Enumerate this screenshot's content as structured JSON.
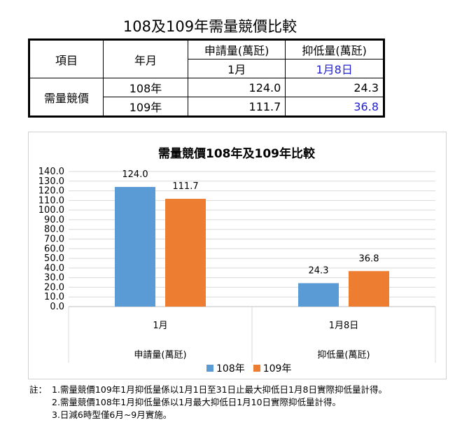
{
  "page_title": "108及109年需量競價比較",
  "table": {
    "header_item": "項目",
    "header_month": "年月",
    "col1_title": "申請量(萬瓩)",
    "col1_sub": "1月",
    "col2_title": "抑低量(萬瓩)",
    "col2_sub": "1月8日",
    "row_label": "需量競價",
    "rows": [
      {
        "year": "108年",
        "v1": "124.0",
        "v2": "24.3"
      },
      {
        "year": "109年",
        "v1": "111.7",
        "v2": "36.8"
      }
    ]
  },
  "colors": {
    "series_108": "#5b9bd5",
    "series_109": "#ed7d31",
    "highlight_text": "#1f1fd2"
  },
  "chart_data": {
    "type": "bar",
    "title": "需量競價108年及109年比較",
    "categories": [
      "1月",
      "1月8日"
    ],
    "groups": [
      "申請量(萬瓩)",
      "抑低量(萬瓩)"
    ],
    "series": [
      {
        "name": "108年",
        "values": [
          124.0,
          24.3
        ]
      },
      {
        "name": "109年",
        "values": [
          111.7,
          36.8
        ]
      }
    ],
    "ylim": [
      0,
      140
    ],
    "ytick_step": 10,
    "grid": true,
    "legend": "bottom"
  },
  "notes": {
    "prefix": "註：",
    "lines": [
      "1.需量競價109年1月抑低量係以1月1日至31日止最大抑低日1月8日實際抑低量計得。",
      "2.需量競價108年1月抑低量係以1月最大抑低日1月10日實際抑低量計得。",
      "3.日減6時型僅6月~9月實施。"
    ]
  }
}
